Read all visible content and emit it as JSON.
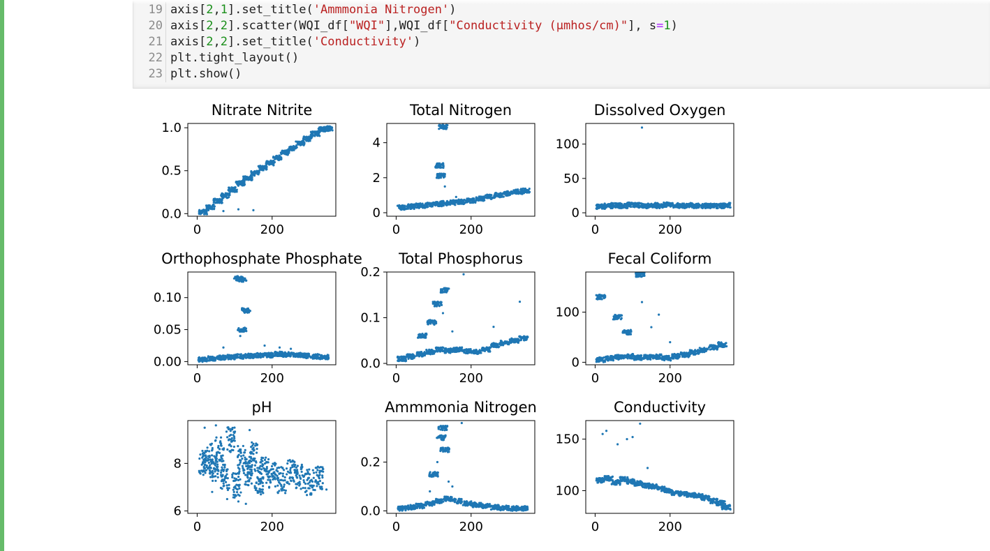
{
  "code": [
    {
      "ln": "19",
      "parts": [
        [
          "axis[",
          ""
        ],
        [
          "2",
          "num"
        ],
        [
          ",",
          ""
        ],
        [
          "1",
          "num"
        ],
        [
          "].set_title(",
          ""
        ],
        [
          "'Ammmonia Nitrogen'",
          "str"
        ],
        [
          ")",
          ""
        ]
      ]
    },
    {
      "ln": "20",
      "parts": [
        [
          "axis[",
          ""
        ],
        [
          "2",
          "num"
        ],
        [
          ",",
          ""
        ],
        [
          "2",
          "num"
        ],
        [
          "].scatter(WQI_df[",
          ""
        ],
        [
          "\"WQI\"",
          "str"
        ],
        [
          "],WQI_df[",
          ""
        ],
        [
          "\"Conductivity (µmhos/cm)\"",
          "str"
        ],
        [
          "], s",
          ""
        ],
        [
          "=",
          "op"
        ],
        [
          "1",
          "num"
        ],
        [
          ")",
          ""
        ]
      ]
    },
    {
      "ln": "21",
      "parts": [
        [
          "axis[",
          ""
        ],
        [
          "2",
          "num"
        ],
        [
          ",",
          ""
        ],
        [
          "2",
          "num"
        ],
        [
          "].set_title(",
          ""
        ],
        [
          "'Conductivity'",
          "str"
        ],
        [
          ")",
          ""
        ]
      ]
    },
    {
      "ln": "22",
      "parts": [
        [
          "plt.tight_layout()",
          ""
        ]
      ]
    },
    {
      "ln": "23",
      "parts": [
        [
          "plt.show()",
          ""
        ]
      ]
    }
  ],
  "colors": {
    "points": "#1f77b4",
    "cell_bar": "#66bb6a",
    "code_bg": "#f5f5f5"
  },
  "chart_data": [
    {
      "type": "scatter",
      "title": "Nitrate Nitrite",
      "xlim": [
        -25,
        370
      ],
      "ylim": [
        -0.03,
        1.05
      ],
      "xticks": [
        0,
        200
      ],
      "yticks": [
        0.0,
        0.5,
        1.0
      ],
      "ytick_labels": [
        "0.0",
        "0.5",
        "1.0"
      ],
      "x": [
        15,
        35,
        55,
        75,
        95,
        115,
        135,
        155,
        175,
        195,
        215,
        235,
        255,
        275,
        295,
        315,
        335,
        350,
        25,
        60,
        90,
        120,
        30,
        70,
        110,
        150
      ],
      "y": [
        0.02,
        0.08,
        0.15,
        0.21,
        0.28,
        0.35,
        0.41,
        0.47,
        0.53,
        0.59,
        0.65,
        0.71,
        0.76,
        0.82,
        0.87,
        0.93,
        0.98,
        0.99,
        0.05,
        0.17,
        0.26,
        0.38,
        0.04,
        0.03,
        0.05,
        0.04
      ]
    },
    {
      "type": "scatter",
      "title": "Total Nitrogen",
      "xlim": [
        -25,
        370
      ],
      "ylim": [
        -0.2,
        5.1
      ],
      "xticks": [
        0,
        200
      ],
      "yticks": [
        0,
        2,
        4
      ],
      "ytick_labels": [
        "0",
        "2",
        "4"
      ],
      "x": [
        15,
        40,
        65,
        90,
        115,
        130,
        150,
        175,
        200,
        225,
        250,
        275,
        300,
        325,
        345,
        125,
        115,
        120,
        130,
        160
      ],
      "y": [
        0.3,
        0.35,
        0.4,
        0.45,
        0.5,
        0.55,
        0.58,
        0.62,
        0.7,
        0.8,
        0.9,
        1.0,
        1.1,
        1.2,
        1.25,
        4.9,
        2.7,
        2.1,
        1.5,
        0.9
      ]
    },
    {
      "type": "scatter",
      "title": "Dissolved Oxygen",
      "xlim": [
        -25,
        370
      ],
      "ylim": [
        -5,
        130
      ],
      "xticks": [
        0,
        200
      ],
      "yticks": [
        0,
        50,
        100
      ],
      "ytick_labels": [
        "0",
        "50",
        "100"
      ],
      "x": [
        15,
        35,
        55,
        75,
        95,
        115,
        135,
        155,
        175,
        195,
        215,
        235,
        255,
        275,
        295,
        315,
        335,
        350,
        125,
        90,
        160
      ],
      "y": [
        9,
        10,
        11,
        10,
        12,
        11,
        10,
        11,
        10,
        12,
        11,
        10,
        11,
        10,
        10,
        10,
        10,
        11,
        124,
        15,
        14
      ]
    },
    {
      "type": "scatter",
      "title": "Orthophosphate Phosphate",
      "xlim": [
        -25,
        370
      ],
      "ylim": [
        -0.005,
        0.14
      ],
      "xticks": [
        0,
        200
      ],
      "yticks": [
        0.0,
        0.05,
        0.1
      ],
      "ytick_labels": [
        "0.00",
        "0.05",
        "0.10"
      ],
      "x": [
        15,
        40,
        65,
        90,
        115,
        140,
        165,
        190,
        215,
        240,
        265,
        290,
        315,
        340,
        110,
        120,
        130,
        120,
        115,
        70,
        180,
        220,
        250
      ],
      "y": [
        0.003,
        0.005,
        0.006,
        0.007,
        0.008,
        0.009,
        0.01,
        0.01,
        0.012,
        0.011,
        0.01,
        0.009,
        0.008,
        0.007,
        0.13,
        0.128,
        0.08,
        0.05,
        0.04,
        0.022,
        0.025,
        0.022,
        0.02
      ]
    },
    {
      "type": "scatter",
      "title": "Total Phosphorus",
      "xlim": [
        -25,
        370
      ],
      "ylim": [
        -0.003,
        0.2
      ],
      "xticks": [
        0,
        200
      ],
      "yticks": [
        0.0,
        0.1,
        0.2
      ],
      "ytick_labels": [
        "0.0",
        "0.1",
        "0.2"
      ],
      "x": [
        15,
        40,
        65,
        90,
        115,
        140,
        165,
        190,
        215,
        240,
        265,
        290,
        315,
        340,
        70,
        95,
        110,
        130,
        125,
        150,
        180,
        260,
        330
      ],
      "y": [
        0.01,
        0.015,
        0.02,
        0.025,
        0.03,
        0.028,
        0.03,
        0.027,
        0.025,
        0.03,
        0.04,
        0.045,
        0.05,
        0.055,
        0.06,
        0.09,
        0.13,
        0.16,
        0.11,
        0.07,
        0.195,
        0.08,
        0.135
      ]
    },
    {
      "type": "scatter",
      "title": "Fecal Coliform",
      "xlim": [
        -25,
        370
      ],
      "ylim": [
        -5,
        180
      ],
      "xticks": [
        0,
        200
      ],
      "yticks": [
        0,
        100
      ],
      "ytick_labels": [
        "0",
        "100"
      ],
      "x": [
        15,
        40,
        65,
        90,
        115,
        140,
        165,
        190,
        215,
        240,
        265,
        290,
        315,
        340,
        15,
        60,
        85,
        120,
        125,
        150,
        170,
        200,
        330
      ],
      "y": [
        5,
        8,
        10,
        12,
        9,
        10,
        11,
        8,
        12,
        15,
        20,
        25,
        30,
        35,
        130,
        90,
        60,
        175,
        120,
        70,
        95,
        40,
        40
      ]
    },
    {
      "type": "scatter",
      "title": "pH",
      "xlim": [
        -25,
        370
      ],
      "ylim": [
        5.9,
        9.8
      ],
      "xticks": [
        0,
        200
      ],
      "yticks": [
        6,
        8
      ],
      "ytick_labels": [
        "6",
        "8"
      ],
      "x": [
        15,
        30,
        45,
        60,
        75,
        90,
        105,
        120,
        135,
        150,
        165,
        180,
        200,
        225,
        250,
        275,
        300,
        325,
        345,
        20,
        50,
        80,
        110,
        140,
        170,
        40,
        90,
        130
      ],
      "y": [
        8.0,
        8.3,
        7.8,
        8.6,
        7.4,
        9.0,
        7.1,
        8.2,
        7.6,
        8.4,
        7.3,
        7.7,
        7.5,
        7.3,
        7.6,
        7.4,
        7.2,
        7.4,
        6.9,
        9.5,
        9.6,
        6.5,
        6.4,
        9.4,
        6.7,
        6.8,
        9.2,
        6.3
      ]
    },
    {
      "type": "scatter",
      "title": "Ammmonia Nitrogen",
      "xlim": [
        -25,
        370
      ],
      "ylim": [
        -0.01,
        0.37
      ],
      "xticks": [
        0,
        200
      ],
      "yticks": [
        0.0,
        0.2
      ],
      "ytick_labels": [
        "0.0",
        "0.2"
      ],
      "x": [
        15,
        40,
        65,
        90,
        115,
        140,
        165,
        190,
        215,
        240,
        265,
        290,
        315,
        340,
        100,
        120,
        125,
        130,
        110,
        140,
        150,
        175,
        90
      ],
      "y": [
        0.01,
        0.015,
        0.02,
        0.03,
        0.04,
        0.05,
        0.04,
        0.03,
        0.025,
        0.02,
        0.015,
        0.012,
        0.01,
        0.01,
        0.15,
        0.3,
        0.34,
        0.25,
        0.2,
        0.12,
        0.1,
        0.36,
        0.08
      ]
    },
    {
      "type": "scatter",
      "title": "Conductivity",
      "xlim": [
        -25,
        370
      ],
      "ylim": [
        78,
        168
      ],
      "xticks": [
        0,
        200
      ],
      "yticks": [
        100,
        150
      ],
      "ytick_labels": [
        "100",
        "150"
      ],
      "x": [
        15,
        35,
        55,
        75,
        95,
        115,
        135,
        155,
        175,
        195,
        215,
        235,
        255,
        275,
        295,
        315,
        335,
        350,
        20,
        30,
        60,
        85,
        100,
        120,
        140
      ],
      "y": [
        110,
        112,
        108,
        111,
        109,
        107,
        105,
        104,
        102,
        100,
        98,
        97,
        96,
        95,
        93,
        90,
        88,
        84,
        155,
        158,
        145,
        150,
        152,
        165,
        122
      ]
    }
  ]
}
